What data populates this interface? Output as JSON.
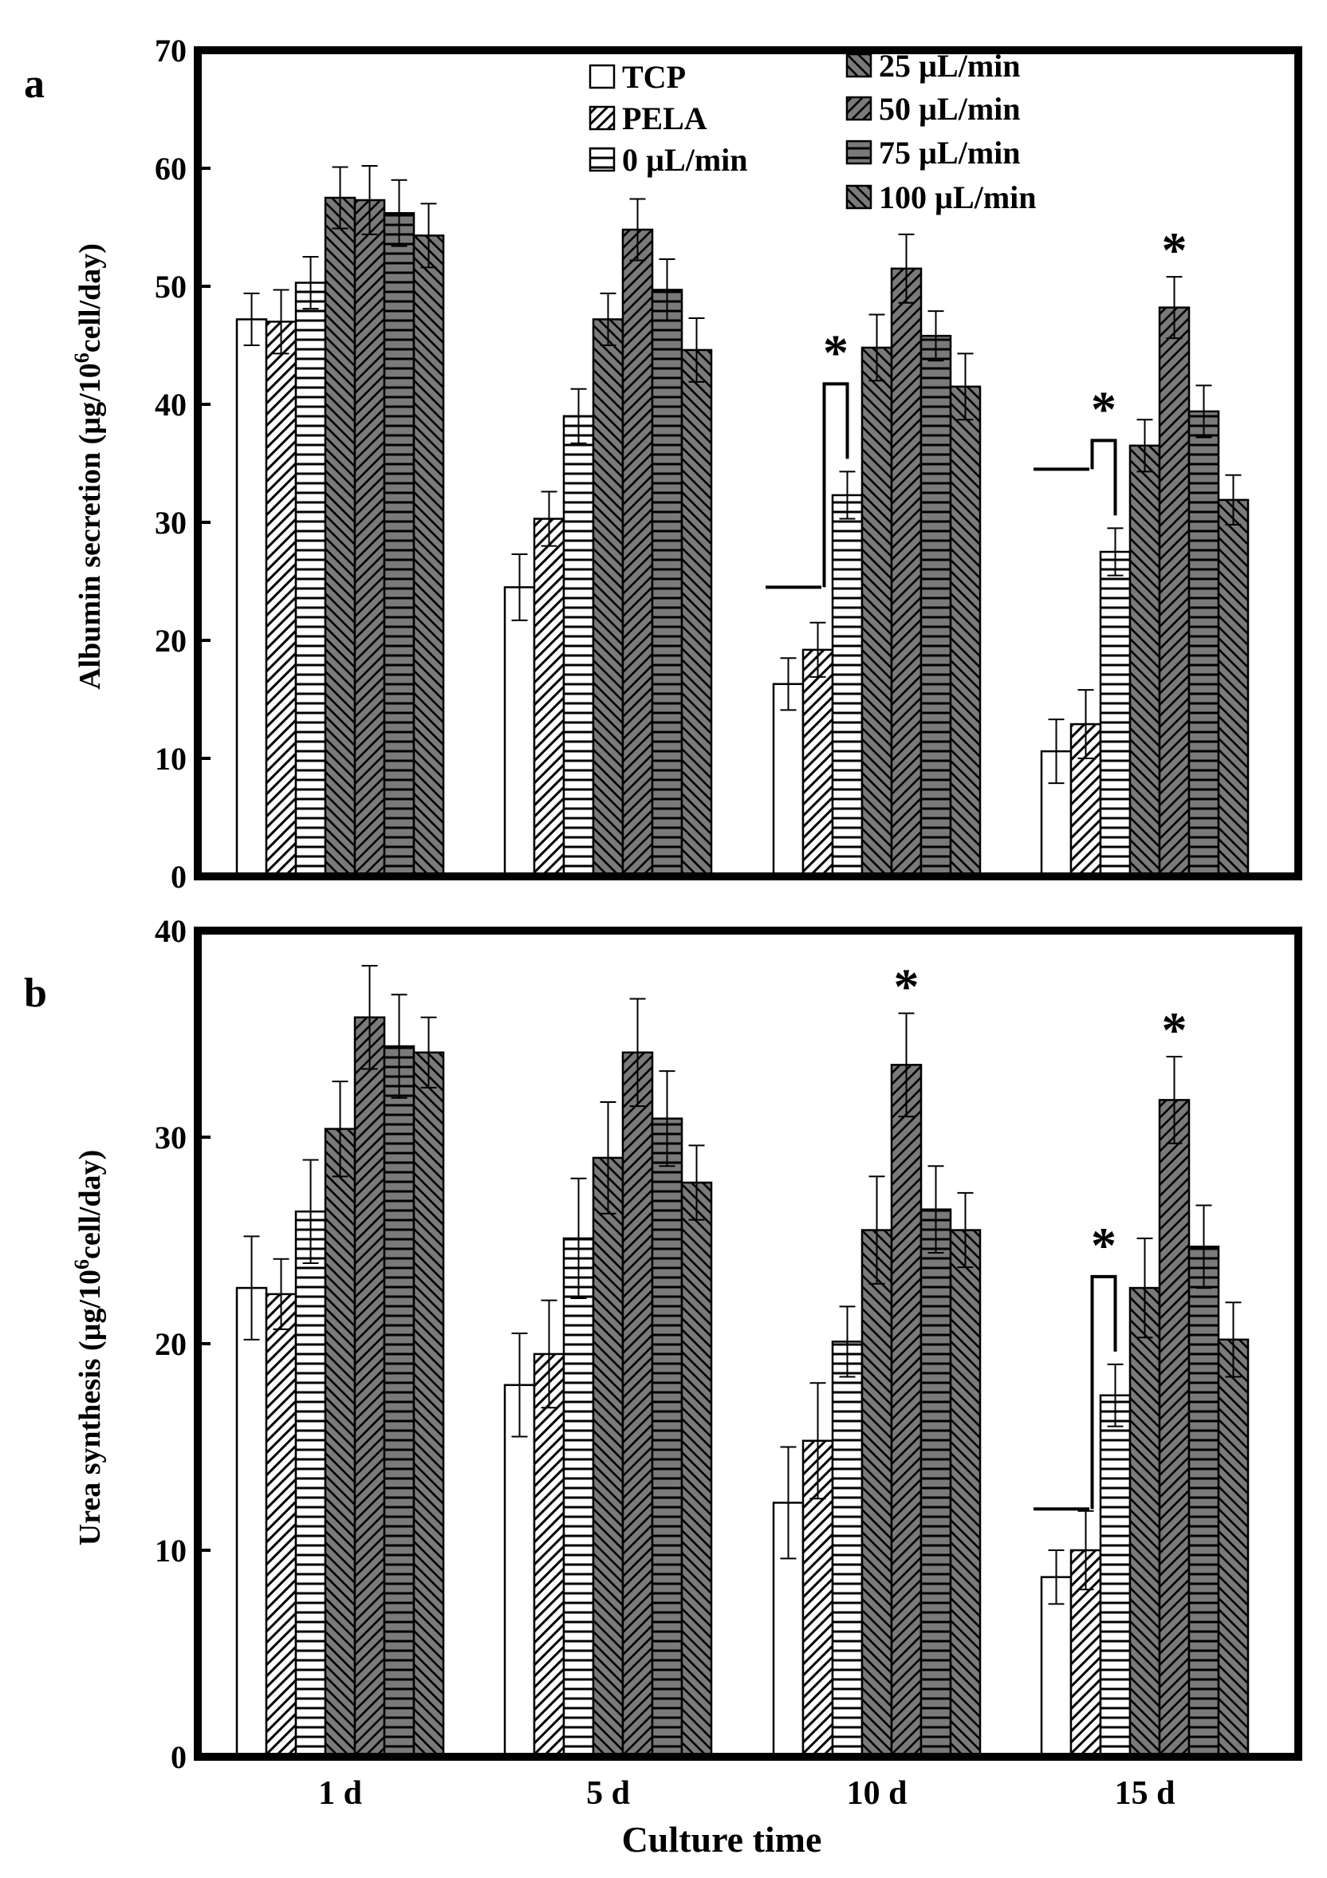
{
  "chart_data": [
    {
      "type": "bar",
      "panel_label": "a",
      "ylabel_main": "Albumin secretion (µg/10",
      "ylabel_sup": "6",
      "ylabel_tail": "cell/day)",
      "xlabel": "",
      "ylim": [
        0,
        70
      ],
      "yticks": [
        "0",
        "10",
        "20",
        "30",
        "40",
        "50",
        "60",
        "70"
      ],
      "categories": [
        "1 d",
        "5 d",
        "10 d",
        "15 d"
      ],
      "show_category_labels": false,
      "grid": false,
      "legend": {
        "position": "top-center",
        "entries": [
          "TCP",
          "PELA",
          "0 µL/min",
          "25 µL/min",
          "50 µL/min",
          "75 µL/min",
          "100 µL/min"
        ]
      },
      "series": [
        {
          "name": "TCP",
          "values": [
            47.2,
            24.5,
            16.3,
            10.6
          ],
          "errors": [
            2.2,
            2.8,
            2.2,
            2.7
          ]
        },
        {
          "name": "PELA",
          "values": [
            47.0,
            30.3,
            19.2,
            12.9
          ],
          "errors": [
            2.7,
            2.3,
            2.3,
            2.9
          ]
        },
        {
          "name": "0 µL/min",
          "values": [
            50.3,
            39.0,
            32.3,
            27.5
          ],
          "errors": [
            2.2,
            2.3,
            2.0,
            2.0
          ]
        },
        {
          "name": "25 µL/min",
          "values": [
            57.5,
            47.2,
            44.8,
            36.5
          ],
          "errors": [
            2.6,
            2.2,
            2.8,
            2.2
          ]
        },
        {
          "name": "50 µL/min",
          "values": [
            57.3,
            54.8,
            51.5,
            48.2
          ],
          "errors": [
            2.9,
            2.6,
            2.9,
            2.6
          ]
        },
        {
          "name": "75 µL/min",
          "values": [
            56.2,
            49.7,
            45.8,
            39.4
          ],
          "errors": [
            2.8,
            2.6,
            2.1,
            2.2
          ]
        },
        {
          "name": "100 µL/min",
          "values": [
            54.3,
            44.6,
            41.5,
            31.9
          ],
          "errors": [
            2.7,
            2.7,
            2.8,
            2.1
          ]
        }
      ],
      "annotations": [
        {
          "text": "*",
          "category": "10 d",
          "type": "bracket",
          "from_series": 0,
          "to_series": 2,
          "height": 24.5
        },
        {
          "text": "*",
          "category": "15 d",
          "type": "bracket",
          "from_series": 0,
          "to_series": 2,
          "height": 34.5
        },
        {
          "text": "*",
          "category": "15 d",
          "type": "star",
          "series": 4
        }
      ]
    },
    {
      "type": "bar",
      "panel_label": "b",
      "ylabel_main": "Urea synthesis (µg/10",
      "ylabel_sup": "6",
      "ylabel_tail": "cell/day)",
      "xlabel": "Culture time",
      "ylim": [
        0,
        40
      ],
      "yticks": [
        "0",
        "10",
        "20",
        "30",
        "40"
      ],
      "categories": [
        "1 d",
        "5 d",
        "10 d",
        "15 d"
      ],
      "show_category_labels": true,
      "grid": false,
      "series": [
        {
          "name": "TCP",
          "values": [
            22.7,
            18.0,
            12.3,
            8.7
          ],
          "errors": [
            2.5,
            2.5,
            2.7,
            1.3
          ]
        },
        {
          "name": "PELA",
          "values": [
            22.4,
            19.5,
            15.3,
            10.0
          ],
          "errors": [
            1.7,
            2.6,
            2.8,
            1.9
          ]
        },
        {
          "name": "0 µL/min",
          "values": [
            26.4,
            25.1,
            20.1,
            17.5
          ],
          "errors": [
            2.5,
            2.9,
            1.7,
            1.5
          ]
        },
        {
          "name": "25 µL/min",
          "values": [
            30.4,
            29.0,
            25.5,
            22.7
          ],
          "errors": [
            2.3,
            2.7,
            2.6,
            2.4
          ]
        },
        {
          "name": "50 µL/min",
          "values": [
            35.8,
            34.1,
            33.5,
            31.8
          ],
          "errors": [
            2.5,
            2.6,
            2.5,
            2.1
          ]
        },
        {
          "name": "75 µL/min",
          "values": [
            34.4,
            30.9,
            26.5,
            24.7
          ],
          "errors": [
            2.5,
            2.3,
            2.1,
            2.0
          ]
        },
        {
          "name": "100 µL/min",
          "values": [
            34.1,
            27.8,
            25.5,
            20.2
          ],
          "errors": [
            1.7,
            1.8,
            1.8,
            1.8
          ]
        }
      ],
      "annotations": [
        {
          "text": "*",
          "category": "10 d",
          "type": "star",
          "series": 4
        },
        {
          "text": "*",
          "category": "15 d",
          "type": "star",
          "series": 4
        },
        {
          "text": "*",
          "category": "15 d",
          "type": "bracket",
          "from_series": 0,
          "to_series": 2,
          "height": 12.0
        }
      ]
    }
  ]
}
